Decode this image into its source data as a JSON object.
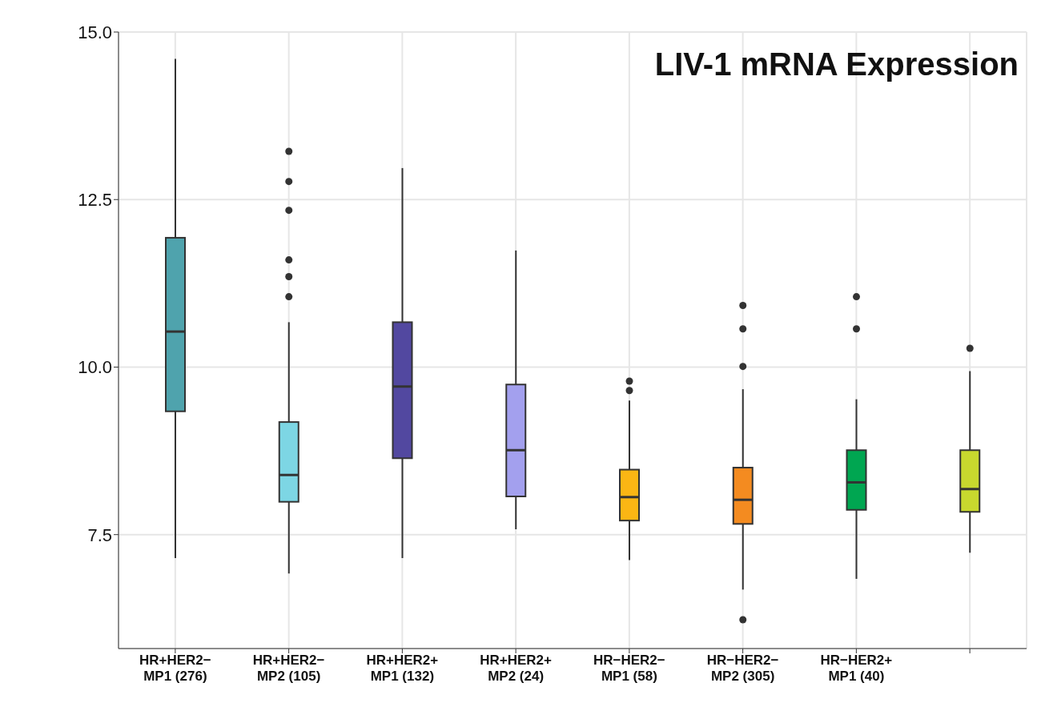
{
  "chart_data": {
    "type": "box",
    "categories": [
      "HR+HER2− MP1 (276)",
      "HR+HER2− MP2 (105)",
      "HR+HER2+ MP1 (132)",
      "HR+HER2+ MP2 (24)",
      "HR−HER2− MP1 (58)",
      "HR−HER2− MP2 (305)",
      "HR−HER2+ MP1 (40)",
      null
    ],
    "colors": [
      "#4fa3ad",
      "#7dd6e4",
      "#5248a0",
      "#a3a0ee",
      "#fbb614",
      "#f48b20",
      "#00a651",
      "#c8d82e"
    ],
    "boxes": [
      {
        "low": 7.15,
        "q1": 9.34,
        "median": 10.53,
        "q3": 11.93,
        "high": 14.6
      },
      {
        "low": 6.92,
        "q1": 7.99,
        "median": 8.39,
        "q3": 9.18,
        "high": 10.67,
        "outliers": [
          13.22,
          12.77,
          12.34,
          11.6,
          11.35,
          11.05
        ]
      },
      {
        "low": 7.15,
        "q1": 8.64,
        "median": 9.71,
        "q3": 10.67,
        "high": 12.97
      },
      {
        "low": 7.58,
        "q1": 8.07,
        "median": 8.76,
        "q3": 9.74,
        "high": 11.74
      },
      {
        "low": 7.12,
        "q1": 7.71,
        "median": 8.06,
        "q3": 8.47,
        "high": 9.5,
        "outliers": [
          9.79,
          9.65
        ]
      },
      {
        "low": 6.68,
        "q1": 7.66,
        "median": 8.02,
        "q3": 8.5,
        "high": 9.67,
        "outliers": [
          10.92,
          10.57,
          10.01,
          6.23
        ]
      },
      {
        "low": 6.84,
        "q1": 7.87,
        "median": 8.28,
        "q3": 8.76,
        "high": 9.52,
        "outliers": [
          11.05,
          10.57
        ]
      },
      {
        "low": 7.23,
        "q1": 7.84,
        "median": 8.18,
        "q3": 8.76,
        "high": 9.94,
        "outliers": [
          10.28
        ]
      }
    ],
    "ylim": [
      5.8,
      15
    ],
    "yticks": [
      {
        "value": 7.5,
        "label": "7.5"
      },
      {
        "value": 10,
        "label": "10.0"
      },
      {
        "value": 12.5,
        "label": "12.5"
      },
      {
        "value": 15,
        "label": "15.0"
      }
    ],
    "grid": true,
    "annotations": [
      "LIV-1 mRNA Expression"
    ]
  }
}
